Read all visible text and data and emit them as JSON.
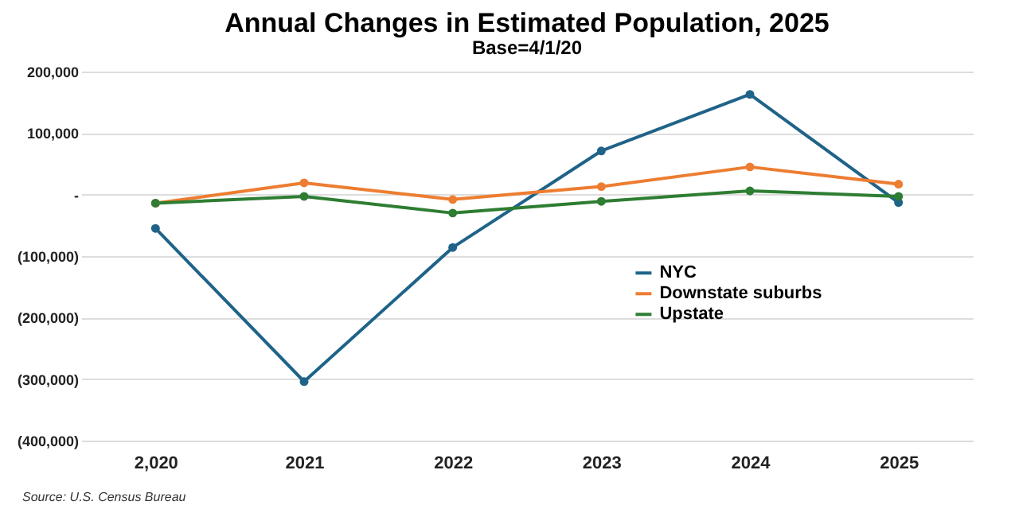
{
  "chart_data": {
    "type": "line",
    "title": "Annual Changes in Estimated Population, 2025",
    "subtitle": "Base=4/1/20",
    "categories": [
      "2,020",
      "2021",
      "2022",
      "2023",
      "2024",
      "2025"
    ],
    "series": [
      {
        "name": "NYC",
        "color": "#1f6388",
        "values": [
          -55000,
          -304000,
          -86000,
          71000,
          163000,
          -13000
        ]
      },
      {
        "name": "Downstate suburbs",
        "color": "#ed7d31",
        "values": [
          -14000,
          19000,
          -8000,
          13000,
          45000,
          17000
        ]
      },
      {
        "name": "Upstate",
        "color": "#2e7d32",
        "values": [
          -14000,
          -3000,
          -30000,
          -11000,
          6000,
          -3000
        ]
      }
    ],
    "ylim": [
      -400000,
      200000
    ],
    "yticks": [
      {
        "value": -400000,
        "label": "(400,000)"
      },
      {
        "value": -300000,
        "label": "(300,000)"
      },
      {
        "value": -200000,
        "label": "(200,000)"
      },
      {
        "value": -100000,
        "label": "(100,000)"
      },
      {
        "value": 0,
        "label": "-"
      },
      {
        "value": 100000,
        "label": "100,000"
      },
      {
        "value": 200000,
        "label": "200,000"
      }
    ],
    "grid": "y",
    "legend": "right",
    "marker": "circle",
    "line_style": "solid",
    "annotations": [
      "Source: U.S. Census Bureau"
    ]
  }
}
